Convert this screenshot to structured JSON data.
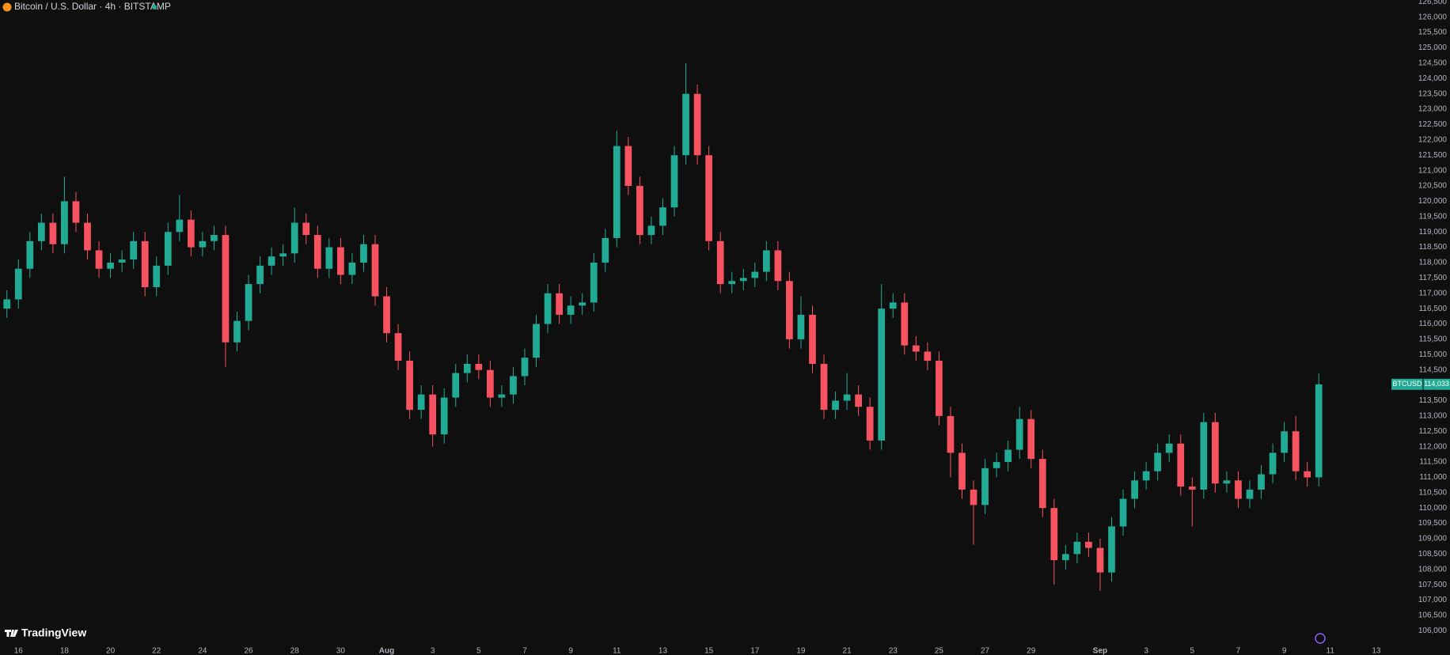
{
  "chart_data": {
    "type": "candlestick",
    "title": "Bitcoin / U.S. Dollar · 4h · BITSTAMP",
    "brand": "TradingView",
    "symbol": "BTCUSD",
    "last_value_label": "114,033",
    "up_color": "#22ab94",
    "down_color": "#f7525f",
    "x": [
      -0.5,
      0,
      0.5,
      1,
      1.5,
      2,
      2.5,
      3,
      3.5,
      4,
      4.5,
      5,
      5.5,
      6,
      6.5,
      7,
      7.5,
      8,
      8.5,
      9,
      9.5,
      10,
      10.5,
      11,
      11.5,
      12,
      12.5,
      13,
      13.5,
      14,
      14.5,
      15,
      15.5,
      16,
      16.5,
      17,
      17.5,
      18,
      18.5,
      19,
      19.5,
      20,
      20.5,
      21,
      21.5,
      22,
      22.5,
      23,
      23.5,
      24,
      24.5,
      25,
      25.5,
      26,
      26.5,
      27,
      27.5,
      28,
      28.5,
      29,
      29.5,
      30,
      30.5,
      31,
      31.5,
      32,
      32.5,
      33,
      33.5,
      34,
      34.5,
      35,
      35.5,
      36,
      36.5,
      37,
      37.5,
      38,
      38.5,
      39,
      39.5,
      40,
      40.5,
      41,
      41.5,
      42,
      42.5,
      43,
      43.5,
      44,
      44.5,
      45,
      45.5,
      46,
      46.5,
      47,
      47.5,
      48,
      48.5,
      49,
      49.5,
      50,
      50.5,
      51,
      51.5,
      52,
      52.5,
      53,
      53.5,
      54,
      54.5,
      55,
      55.5,
      56,
      56.5
    ],
    "open": [
      116500,
      116800,
      117800,
      118700,
      119300,
      118600,
      120000,
      119300,
      118400,
      117800,
      118000,
      118100,
      118700,
      117200,
      117900,
      119000,
      119400,
      118500,
      118700,
      118900,
      115400,
      116100,
      117300,
      117900,
      118200,
      118300,
      119300,
      118900,
      117800,
      118500,
      117600,
      118000,
      118600,
      116900,
      115700,
      114800,
      113200,
      113700,
      112400,
      113600,
      114400,
      114700,
      114500,
      113600,
      113700,
      114300,
      114900,
      116000,
      117000,
      116300,
      116600,
      116700,
      118000,
      118800,
      121800,
      120500,
      118900,
      119200,
      119800,
      121500,
      123500,
      121500,
      118700,
      117300,
      117400,
      117500,
      117700,
      118400,
      117400,
      115500,
      116300,
      114700,
      113200,
      113500,
      113700,
      113300,
      112200,
      116500,
      116700,
      115300,
      115100,
      114800,
      113000,
      111800,
      110600,
      110100,
      111300,
      111500,
      111900,
      112900,
      111600,
      110000,
      108300,
      108500,
      108900,
      108700,
      107900,
      109400,
      110300,
      110900,
      111200,
      111800,
      112100,
      110700,
      110600,
      112800,
      110800,
      110900,
      110300,
      110600,
      111100,
      111800,
      112500,
      111200,
      111000
    ],
    "high": [
      117100,
      118100,
      119000,
      119600,
      119600,
      120800,
      120300,
      119600,
      118700,
      118300,
      118400,
      119000,
      119000,
      118200,
      119300,
      120200,
      119700,
      119000,
      119200,
      119200,
      116400,
      117600,
      118200,
      118500,
      118600,
      119800,
      119600,
      119200,
      118800,
      118800,
      118300,
      118900,
      118900,
      117200,
      116000,
      115100,
      114000,
      114000,
      113900,
      114700,
      115000,
      115000,
      114800,
      114000,
      114600,
      115200,
      116300,
      117300,
      117300,
      116900,
      117000,
      118300,
      119100,
      122300,
      122100,
      120800,
      119500,
      120100,
      121800,
      124500,
      123800,
      121800,
      119000,
      117700,
      117800,
      118000,
      118700,
      118700,
      117700,
      116900,
      116600,
      115000,
      113800,
      114400,
      114000,
      113600,
      117300,
      117000,
      117000,
      115600,
      115400,
      115100,
      113300,
      112100,
      110900,
      111600,
      111800,
      112200,
      113300,
      113200,
      111900,
      110300,
      108800,
      109200,
      109200,
      109000,
      109700,
      110600,
      111200,
      111500,
      112100,
      112400,
      112400,
      111000,
      113100,
      113100,
      111200,
      111200,
      110900,
      111400,
      112100,
      112800,
      113000,
      111500,
      114400
    ],
    "low": [
      116200,
      116500,
      117500,
      118400,
      118300,
      118300,
      119000,
      118100,
      117500,
      117500,
      117700,
      117800,
      116900,
      116900,
      117600,
      118700,
      118200,
      118200,
      118400,
      114600,
      115100,
      115800,
      117000,
      117600,
      117900,
      118000,
      118600,
      117500,
      117500,
      117300,
      117300,
      117700,
      116600,
      115400,
      114500,
      112900,
      112900,
      112000,
      112100,
      113300,
      114100,
      114200,
      113300,
      113300,
      113400,
      114000,
      114600,
      115700,
      116000,
      116000,
      116300,
      116400,
      117700,
      118500,
      120200,
      118600,
      118600,
      118900,
      119500,
      121200,
      121200,
      118400,
      117000,
      117000,
      117100,
      117200,
      117400,
      117100,
      115200,
      115200,
      114400,
      112900,
      112900,
      113200,
      113000,
      111900,
      111900,
      116200,
      115000,
      114800,
      114500,
      112700,
      111000,
      110300,
      108800,
      109800,
      111000,
      111200,
      111600,
      111300,
      109700,
      107500,
      108000,
      108200,
      108400,
      107300,
      107600,
      109100,
      110000,
      110600,
      110900,
      111500,
      110400,
      109400,
      110300,
      110500,
      110500,
      110000,
      110000,
      110300,
      110800,
      111500,
      110900,
      110700,
      110700
    ],
    "close": [
      116800,
      117800,
      118700,
      119300,
      118600,
      120000,
      119300,
      118400,
      117800,
      118000,
      118100,
      118700,
      117200,
      117900,
      119000,
      119400,
      118500,
      118700,
      118900,
      115400,
      116100,
      117300,
      117900,
      118200,
      118300,
      119300,
      118900,
      117800,
      118500,
      117600,
      118000,
      118600,
      116900,
      115700,
      114800,
      113200,
      113700,
      112400,
      113600,
      114400,
      114700,
      114500,
      113600,
      113700,
      114300,
      114900,
      116000,
      117000,
      116300,
      116600,
      116700,
      118000,
      118800,
      121800,
      120500,
      118900,
      119200,
      119800,
      121500,
      123500,
      121500,
      118700,
      117300,
      117400,
      117500,
      117700,
      118400,
      117400,
      115500,
      116300,
      114700,
      113200,
      113500,
      113700,
      113300,
      112200,
      116500,
      116700,
      115300,
      115100,
      114800,
      113000,
      111800,
      110600,
      110100,
      111300,
      111500,
      111900,
      112900,
      111600,
      110000,
      108300,
      108500,
      108900,
      108700,
      107900,
      109400,
      110300,
      110900,
      111200,
      111800,
      112100,
      110700,
      110600,
      112800,
      110800,
      110900,
      110300,
      110600,
      111100,
      111800,
      112500,
      111200,
      111000,
      114033
    ],
    "xlim": [
      -0.8,
      59.45
    ],
    "xticks": [
      {
        "value": 0,
        "label": "16"
      },
      {
        "value": 2,
        "label": "18"
      },
      {
        "value": 4,
        "label": "20"
      },
      {
        "value": 6,
        "label": "22"
      },
      {
        "value": 8,
        "label": "24"
      },
      {
        "value": 10,
        "label": "26"
      },
      {
        "value": 12,
        "label": "28"
      },
      {
        "value": 14,
        "label": "30"
      },
      {
        "value": 16,
        "label": "Aug"
      },
      {
        "value": 18,
        "label": "3"
      },
      {
        "value": 20,
        "label": "5"
      },
      {
        "value": 22,
        "label": "7"
      },
      {
        "value": 24,
        "label": "9"
      },
      {
        "value": 26,
        "label": "11"
      },
      {
        "value": 28,
        "label": "13"
      },
      {
        "value": 30,
        "label": "15"
      },
      {
        "value": 32,
        "label": "17"
      },
      {
        "value": 34,
        "label": "19"
      },
      {
        "value": 36,
        "label": "21"
      },
      {
        "value": 38,
        "label": "23"
      },
      {
        "value": 40,
        "label": "25"
      },
      {
        "value": 42,
        "label": "27"
      },
      {
        "value": 44,
        "label": "29"
      },
      {
        "value": 47,
        "label": "Sep"
      },
      {
        "value": 49,
        "label": "3"
      },
      {
        "value": 51,
        "label": "5"
      },
      {
        "value": 53,
        "label": "7"
      },
      {
        "value": 55,
        "label": "9"
      },
      {
        "value": 57,
        "label": "11"
      },
      {
        "value": 59,
        "label": "13"
      }
    ],
    "ylim": [
      105570,
      126560
    ],
    "yticks": [
      {
        "value": 106000,
        "label": "106,000"
      },
      {
        "value": 106500,
        "label": "106,500"
      },
      {
        "value": 107000,
        "label": "107,000"
      },
      {
        "value": 107500,
        "label": "107,500"
      },
      {
        "value": 108000,
        "label": "108,000"
      },
      {
        "value": 108500,
        "label": "108,500"
      },
      {
        "value": 109000,
        "label": "109,000"
      },
      {
        "value": 109500,
        "label": "109,500"
      },
      {
        "value": 110000,
        "label": "110,000"
      },
      {
        "value": 110500,
        "label": "110,500"
      },
      {
        "value": 111000,
        "label": "111,000"
      },
      {
        "value": 111500,
        "label": "111,500"
      },
      {
        "value": 112000,
        "label": "112,000"
      },
      {
        "value": 112500,
        "label": "112,500"
      },
      {
        "value": 113000,
        "label": "113,000"
      },
      {
        "value": 113500,
        "label": "113,500"
      },
      {
        "value": 114500,
        "label": "114,500"
      },
      {
        "value": 115000,
        "label": "115,000"
      },
      {
        "value": 115500,
        "label": "115,500"
      },
      {
        "value": 116000,
        "label": "116,000"
      },
      {
        "value": 116500,
        "label": "116,500"
      },
      {
        "value": 117000,
        "label": "117,000"
      },
      {
        "value": 117500,
        "label": "117,500"
      },
      {
        "value": 118000,
        "label": "118,000"
      },
      {
        "value": 118500,
        "label": "118,500"
      },
      {
        "value": 119000,
        "label": "119,000"
      },
      {
        "value": 119500,
        "label": "119,500"
      },
      {
        "value": 120000,
        "label": "120,000"
      },
      {
        "value": 120500,
        "label": "120,500"
      },
      {
        "value": 121000,
        "label": "121,000"
      },
      {
        "value": 121500,
        "label": "121,500"
      },
      {
        "value": 122000,
        "label": "122,000"
      },
      {
        "value": 122500,
        "label": "122,500"
      },
      {
        "value": 123000,
        "label": "123,000"
      },
      {
        "value": 123500,
        "label": "123,500"
      },
      {
        "value": 124000,
        "label": "124,000"
      },
      {
        "value": 124500,
        "label": "124,500"
      },
      {
        "value": 125000,
        "label": "125,000"
      },
      {
        "value": 125500,
        "label": "125,500"
      },
      {
        "value": 126000,
        "label": "126,000"
      },
      {
        "value": 126500,
        "label": "126,500"
      }
    ]
  }
}
